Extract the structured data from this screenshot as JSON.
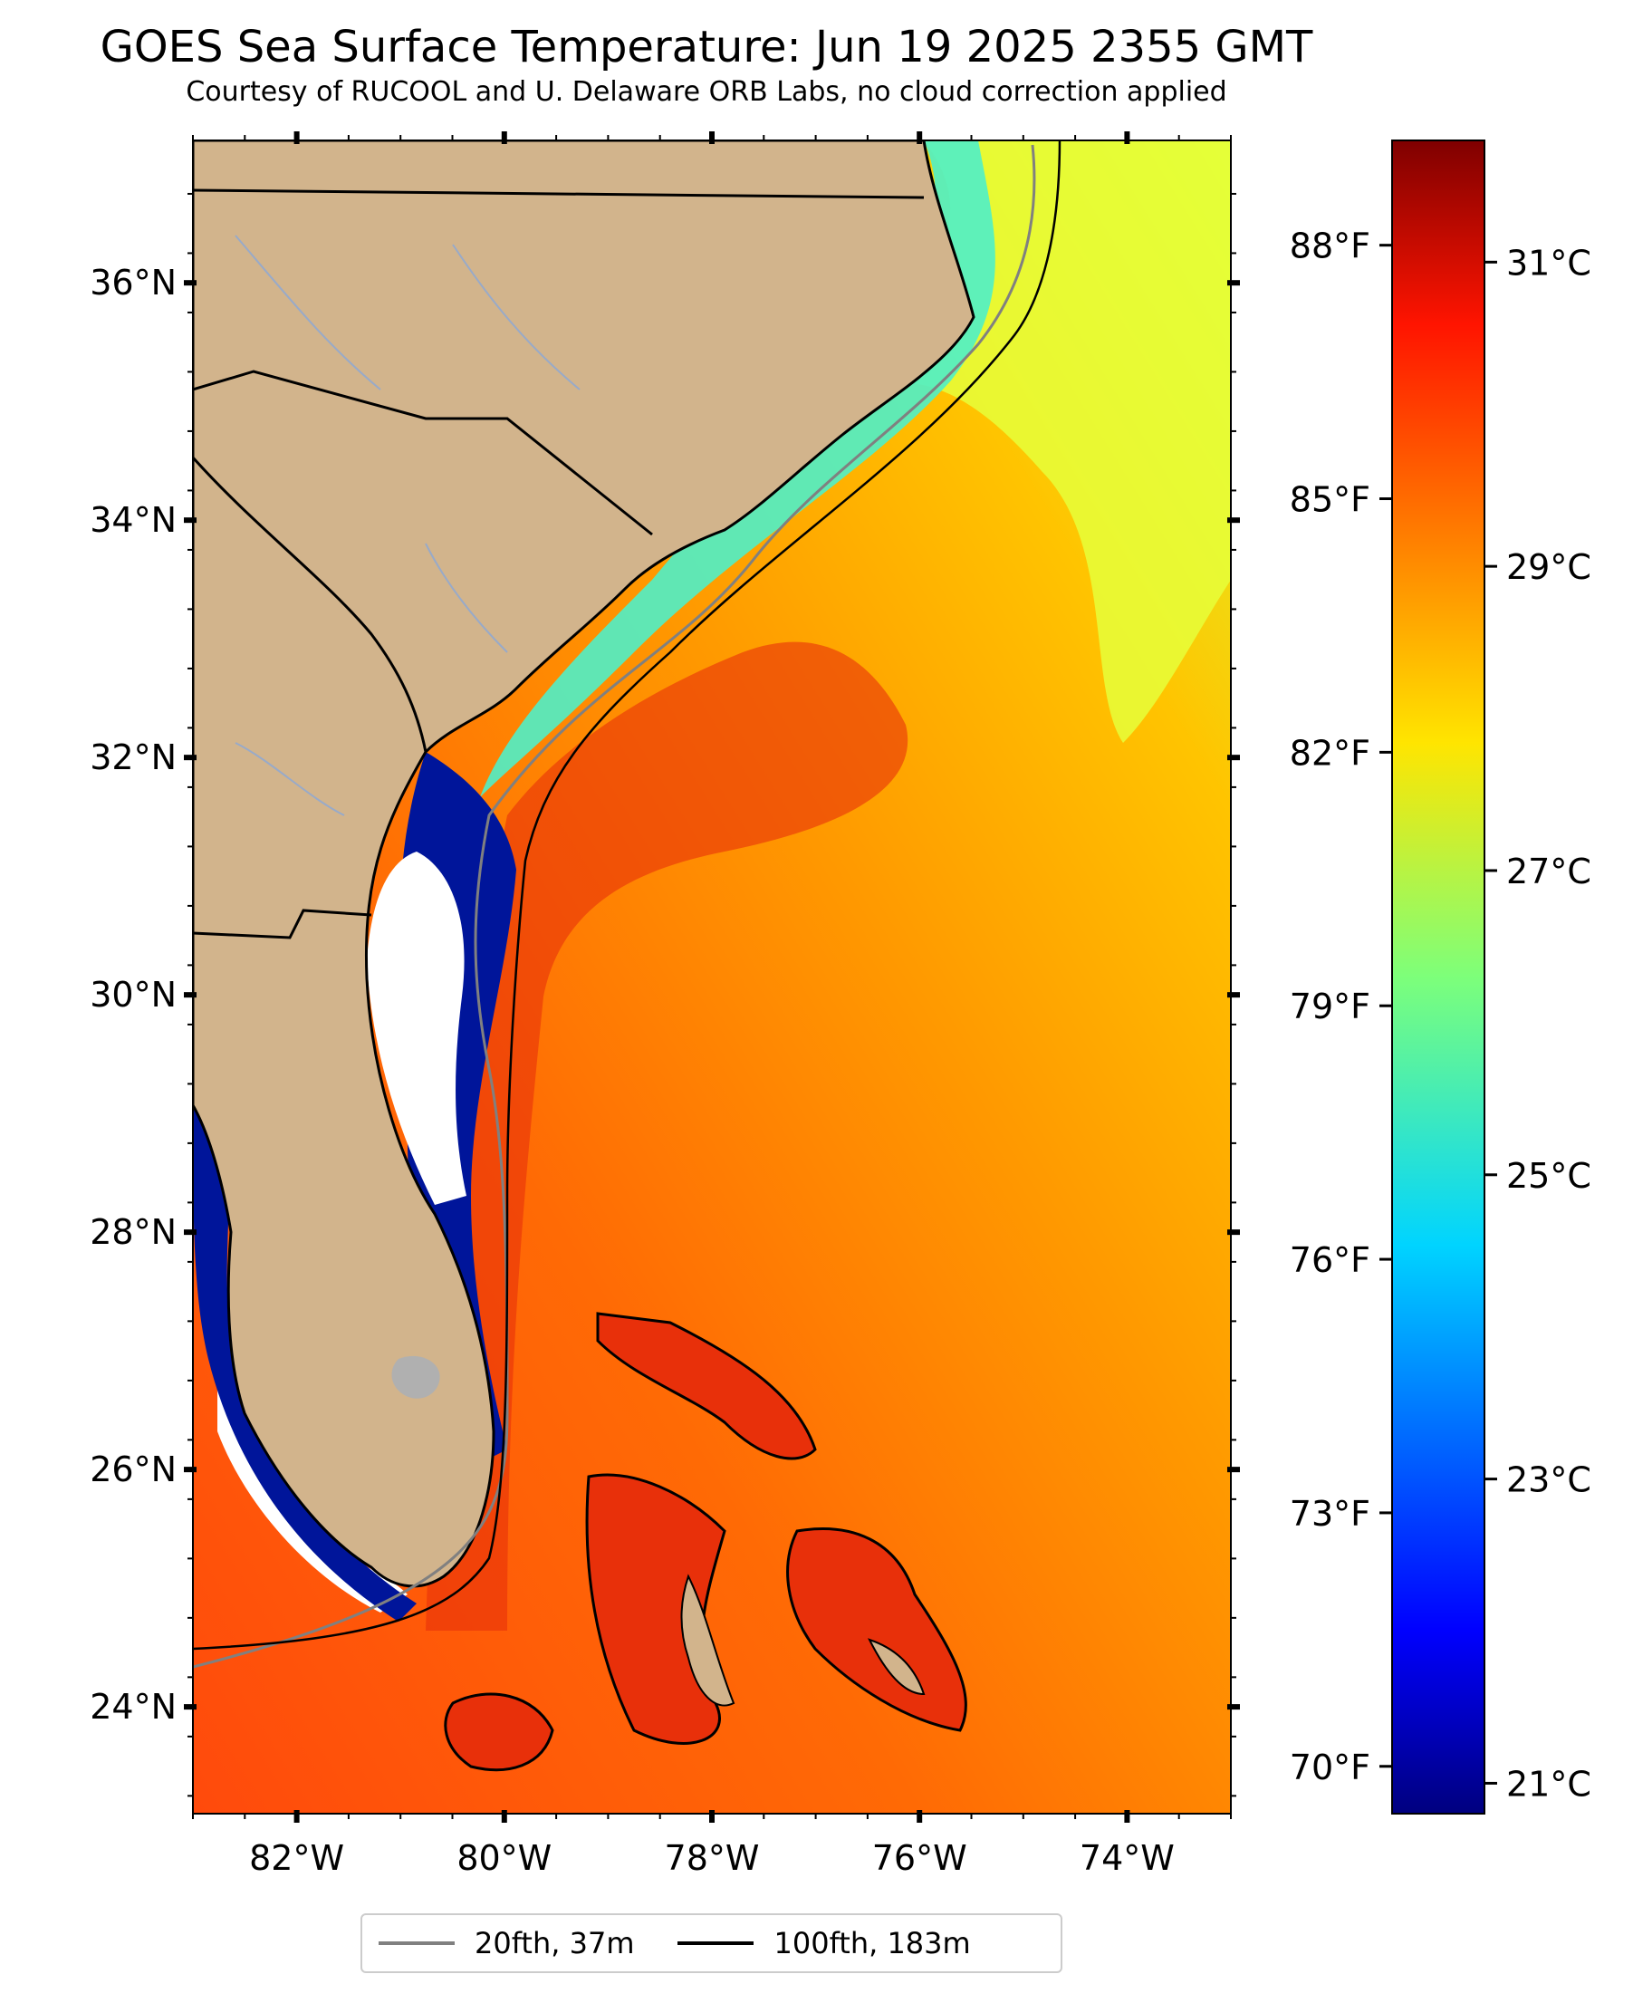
{
  "title": "GOES Sea Surface Temperature: Jun 19 2025 2355 GMT",
  "subtitle": "Courtesy of RUCOOL and U. Delaware ORB Labs, no cloud correction applied",
  "map": {
    "lon_range": [
      -83,
      -73
    ],
    "lat_range": [
      23.1,
      37.2
    ],
    "lon_ticks": [
      {
        "value": -82,
        "label": "82°W"
      },
      {
        "value": -80,
        "label": "80°W"
      },
      {
        "value": -78,
        "label": "78°W"
      },
      {
        "value": -76,
        "label": "76°W"
      },
      {
        "value": -74,
        "label": "74°W"
      }
    ],
    "lat_ticks": [
      {
        "value": 24,
        "label": "24°N"
      },
      {
        "value": 26,
        "label": "26°N"
      },
      {
        "value": 28,
        "label": "28°N"
      },
      {
        "value": 30,
        "label": "30°N"
      },
      {
        "value": 32,
        "label": "32°N"
      },
      {
        "value": 34,
        "label": "34°N"
      },
      {
        "value": 36,
        "label": "36°N"
      }
    ]
  },
  "colorbar": {
    "celsius_range": [
      20.8,
      31.8
    ],
    "celsius_ticks": [
      {
        "value": 21,
        "label": "21°C"
      },
      {
        "value": 23,
        "label": "23°C"
      },
      {
        "value": 25,
        "label": "25°C"
      },
      {
        "value": 27,
        "label": "27°C"
      },
      {
        "value": 29,
        "label": "29°C"
      },
      {
        "value": 31,
        "label": "31°C"
      }
    ],
    "fahrenheit_ticks": [
      {
        "value": 70,
        "label": "70°F"
      },
      {
        "value": 73,
        "label": "73°F"
      },
      {
        "value": 76,
        "label": "76°F"
      },
      {
        "value": 79,
        "label": "79°F"
      },
      {
        "value": 82,
        "label": "82°F"
      },
      {
        "value": 85,
        "label": "85°F"
      },
      {
        "value": 88,
        "label": "88°F"
      }
    ]
  },
  "legend": {
    "items": [
      {
        "label": "20fth, 37m",
        "color": "#808080"
      },
      {
        "label": "100fth, 183m",
        "color": "#000000"
      }
    ]
  },
  "colors": {
    "land": "#d2b48c",
    "cloud_mask": "#ffffff",
    "warm_water": "#ff8c00",
    "hot_water": "#e8300a",
    "cool_water": "#29e3d0",
    "cold_water": "#00159a"
  }
}
